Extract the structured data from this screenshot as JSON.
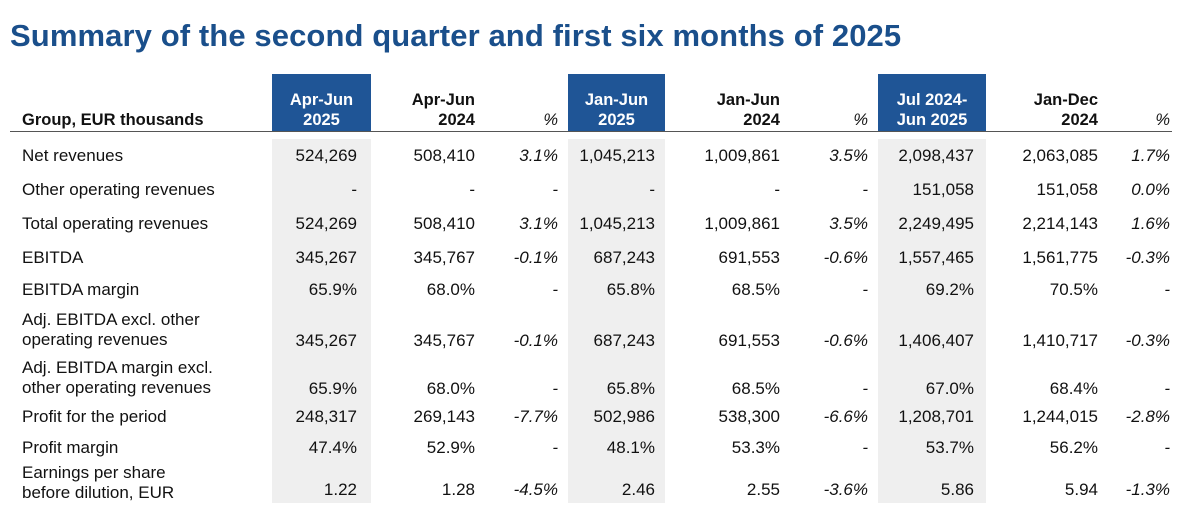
{
  "title": "Summary of the second quarter and first six months of 2025",
  "header": {
    "label": "Group, EUR thousands",
    "columns": [
      {
        "line1": "Apr-Jun",
        "line2": "2025"
      },
      {
        "line1": "Apr-Jun",
        "line2": "2024"
      },
      {
        "line1": "",
        "line2": "%"
      },
      {
        "line1": "Jan-Jun",
        "line2": "2025"
      },
      {
        "line1": "Jan-Jun",
        "line2": "2024"
      },
      {
        "line1": "",
        "line2": "%"
      },
      {
        "line1": "Jul 2024-",
        "line2": "Jun 2025"
      },
      {
        "line1": "Jan-Dec",
        "line2": "2024"
      },
      {
        "line1": "",
        "line2": "%"
      }
    ]
  },
  "rows": [
    {
      "label1": "Net revenues",
      "label2": "",
      "values": [
        "524,269",
        "508,410",
        "3.1%",
        "1,045,213",
        "1,009,861",
        "3.5%",
        "2,098,437",
        "2,063,085",
        "1.7%"
      ]
    },
    {
      "label1": "Other operating revenues",
      "label2": "",
      "values": [
        "-",
        "-",
        "-",
        "-",
        "-",
        "-",
        "151,058",
        "151,058",
        "0.0%"
      ]
    },
    {
      "label1": "Total operating revenues",
      "label2": "",
      "values": [
        "524,269",
        "508,410",
        "3.1%",
        "1,045,213",
        "1,009,861",
        "3.5%",
        "2,249,495",
        "2,214,143",
        "1.6%"
      ]
    },
    {
      "label1": "EBITDA",
      "label2": "",
      "values": [
        "345,267",
        "345,767",
        "-0.1%",
        "687,243",
        "691,553",
        "-0.6%",
        "1,557,465",
        "1,561,775",
        "-0.3%"
      ]
    },
    {
      "label1": "EBITDA margin",
      "label2": "",
      "values": [
        "65.9%",
        "68.0%",
        "-",
        "65.8%",
        "68.5%",
        "-",
        "69.2%",
        "70.5%",
        "-"
      ]
    },
    {
      "label1": "Adj. EBITDA excl. other",
      "label2": "operating revenues",
      "values": [
        "345,267",
        "345,767",
        "-0.1%",
        "687,243",
        "691,553",
        "-0.6%",
        "1,406,407",
        "1,410,717",
        "-0.3%"
      ]
    },
    {
      "label1": "Adj. EBITDA margin excl.",
      "label2": "other operating revenues",
      "values": [
        "65.9%",
        "68.0%",
        "-",
        "65.8%",
        "68.5%",
        "-",
        "67.0%",
        "68.4%",
        "-"
      ]
    },
    {
      "label1": "Profit for the period",
      "label2": "",
      "values": [
        "248,317",
        "269,143",
        "-7.7%",
        "502,986",
        "538,300",
        "-6.6%",
        "1,208,701",
        "1,244,015",
        "-2.8%"
      ]
    },
    {
      "label1": "Profit margin",
      "label2": "",
      "values": [
        "47.4%",
        "52.9%",
        "-",
        "48.1%",
        "53.3%",
        "-",
        "53.7%",
        "56.2%",
        "-"
      ]
    },
    {
      "label1": "Earnings per share",
      "label2": "before dilution, EUR",
      "values": [
        "1.22",
        "1.28",
        "-4.5%",
        "2.46",
        "2.55",
        "-3.6%",
        "5.86",
        "5.94",
        "-1.3%"
      ]
    }
  ],
  "colors": {
    "title": "#1a4f8b",
    "header_highlight": "#1f5596",
    "shade": "#efefef"
  }
}
